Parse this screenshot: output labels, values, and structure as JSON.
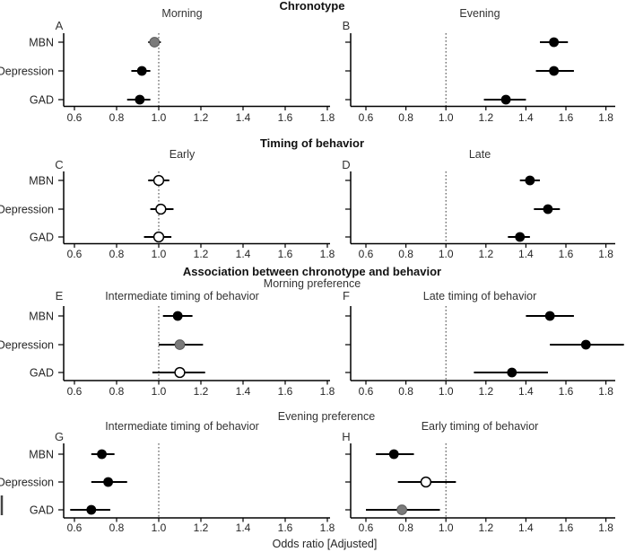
{
  "chart_data": {
    "type": "scatter",
    "subtype": "forest-plot",
    "xlabel": "Odds ratio [Adjusted]",
    "categories": [
      "MBN",
      "Depression",
      "GAD"
    ],
    "xlim": [
      0.5,
      1.9
    ],
    "xticks": [
      0.6,
      0.8,
      1.0,
      1.2,
      1.4,
      1.6,
      1.8
    ],
    "xtick_labels": [
      "0.6",
      "0.8",
      "1.0",
      "1.2",
      "1.4",
      "1.6",
      "1.8"
    ],
    "reference_line": 1.0,
    "grid": false,
    "legend": "none",
    "marker_colors": {
      "black": "#000000",
      "gray": "#7b7b7b",
      "white": "#ffffff"
    },
    "axis_color": "#000000",
    "text_color": "#262626",
    "sections": [
      {
        "header": "Chronotype",
        "subheader": "",
        "panels": [
          {
            "letter": "A",
            "title": "Morning",
            "points": [
              {
                "category": "MBN",
                "or": 0.98,
                "ci_low": 0.95,
                "ci_high": 1.01,
                "fill": "gray"
              },
              {
                "category": "Depression",
                "or": 0.92,
                "ci_low": 0.87,
                "ci_high": 0.96,
                "fill": "black"
              },
              {
                "category": "GAD",
                "or": 0.91,
                "ci_low": 0.85,
                "ci_high": 0.96,
                "fill": "black"
              }
            ]
          },
          {
            "letter": "B",
            "title": "Evening",
            "points": [
              {
                "category": "MBN",
                "or": 1.54,
                "ci_low": 1.47,
                "ci_high": 1.61,
                "fill": "black"
              },
              {
                "category": "Depression",
                "or": 1.54,
                "ci_low": 1.45,
                "ci_high": 1.64,
                "fill": "black"
              },
              {
                "category": "GAD",
                "or": 1.3,
                "ci_low": 1.19,
                "ci_high": 1.4,
                "fill": "black"
              }
            ]
          }
        ]
      },
      {
        "header": "Timing of behavior",
        "subheader": "",
        "panels": [
          {
            "letter": "C",
            "title": "Early",
            "points": [
              {
                "category": "MBN",
                "or": 1.0,
                "ci_low": 0.95,
                "ci_high": 1.05,
                "fill": "white"
              },
              {
                "category": "Depression",
                "or": 1.01,
                "ci_low": 0.96,
                "ci_high": 1.07,
                "fill": "white"
              },
              {
                "category": "GAD",
                "or": 1.0,
                "ci_low": 0.93,
                "ci_high": 1.06,
                "fill": "white"
              }
            ]
          },
          {
            "letter": "D",
            "title": "Late",
            "points": [
              {
                "category": "MBN",
                "or": 1.42,
                "ci_low": 1.37,
                "ci_high": 1.47,
                "fill": "black"
              },
              {
                "category": "Depression",
                "or": 1.51,
                "ci_low": 1.44,
                "ci_high": 1.57,
                "fill": "black"
              },
              {
                "category": "GAD",
                "or": 1.37,
                "ci_low": 1.31,
                "ci_high": 1.42,
                "fill": "black"
              }
            ]
          }
        ]
      },
      {
        "header": "Association between chronotype and behavior",
        "subheader": "Morning preference",
        "panels": [
          {
            "letter": "E",
            "title": "Intermediate timing of behavior",
            "points": [
              {
                "category": "MBN",
                "or": 1.09,
                "ci_low": 1.02,
                "ci_high": 1.16,
                "fill": "black"
              },
              {
                "category": "Depression",
                "or": 1.1,
                "ci_low": 1.0,
                "ci_high": 1.21,
                "fill": "gray"
              },
              {
                "category": "GAD",
                "or": 1.1,
                "ci_low": 0.97,
                "ci_high": 1.22,
                "fill": "white"
              }
            ]
          },
          {
            "letter": "F",
            "title": "Late timing of behavior",
            "points": [
              {
                "category": "MBN",
                "or": 1.52,
                "ci_low": 1.4,
                "ci_high": 1.64,
                "fill": "black"
              },
              {
                "category": "Depression",
                "or": 1.7,
                "ci_low": 1.52,
                "ci_high": 1.89,
                "fill": "black"
              },
              {
                "category": "GAD",
                "or": 1.33,
                "ci_low": 1.14,
                "ci_high": 1.51,
                "fill": "black"
              }
            ]
          }
        ]
      },
      {
        "header": "",
        "subheader": "Evening preference",
        "panels": [
          {
            "letter": "G",
            "title": "Intermediate timing of behavior",
            "points": [
              {
                "category": "MBN",
                "or": 0.73,
                "ci_low": 0.68,
                "ci_high": 0.79,
                "fill": "black"
              },
              {
                "category": "Depression",
                "or": 0.76,
                "ci_low": 0.68,
                "ci_high": 0.85,
                "fill": "black"
              },
              {
                "category": "GAD",
                "or": 0.68,
                "ci_low": 0.58,
                "ci_high": 0.77,
                "fill": "black"
              }
            ]
          },
          {
            "letter": "H",
            "title": "Early timing of behavior",
            "points": [
              {
                "category": "MBN",
                "or": 0.74,
                "ci_low": 0.65,
                "ci_high": 0.84,
                "fill": "black"
              },
              {
                "category": "Depression",
                "or": 0.9,
                "ci_low": 0.76,
                "ci_high": 1.05,
                "fill": "white"
              },
              {
                "category": "GAD",
                "or": 0.78,
                "ci_low": 0.6,
                "ci_high": 0.97,
                "fill": "gray"
              }
            ]
          }
        ]
      }
    ]
  }
}
